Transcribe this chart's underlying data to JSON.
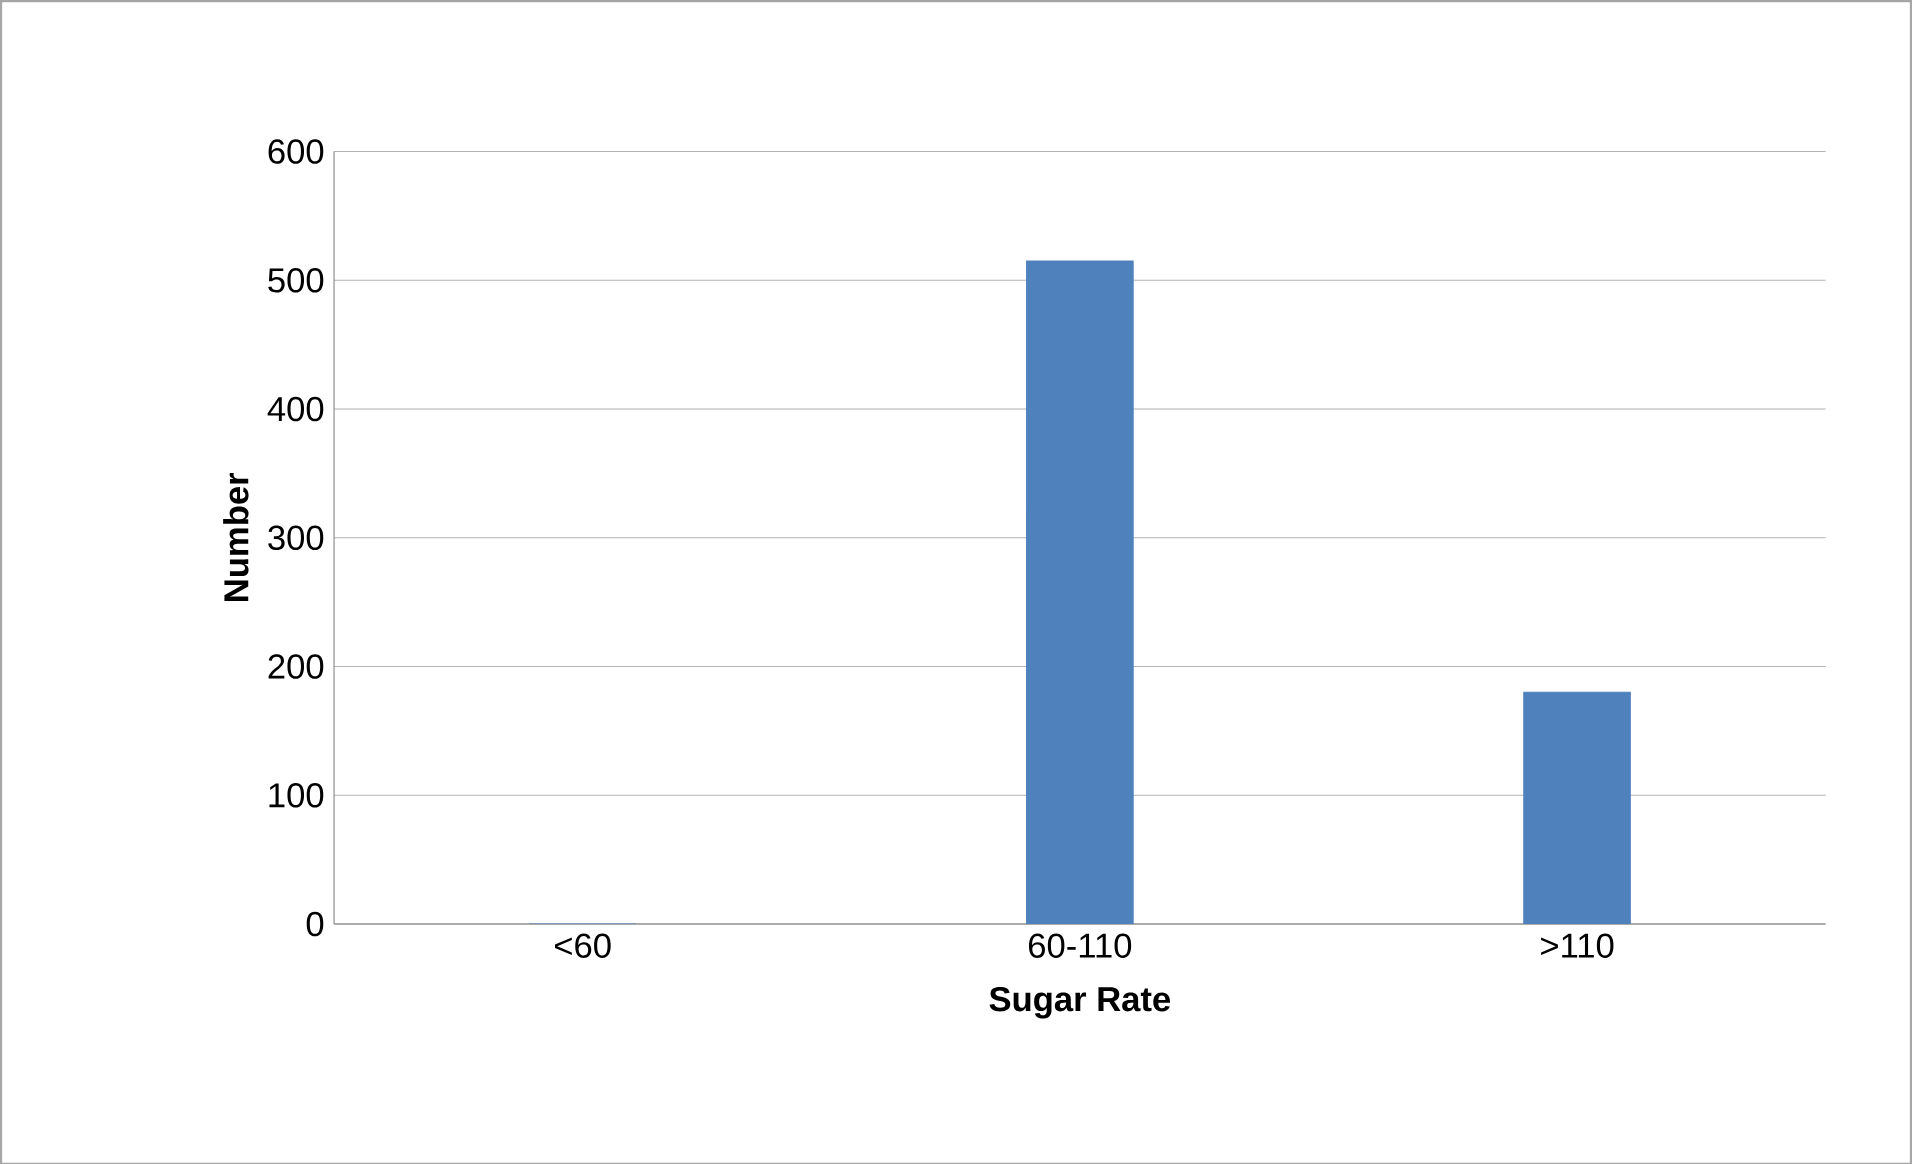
{
  "chart_data": {
    "type": "bar",
    "xlabel": "Sugar Rate",
    "ylabel": "Number",
    "categories": [
      "<60",
      "60-110",
      ">110"
    ],
    "values": [
      0,
      515,
      180
    ],
    "color": "#4f81bd",
    "ylim": [
      0,
      600
    ],
    "yticks": [
      0,
      100,
      200,
      300,
      400,
      500,
      600
    ],
    "grid": "y"
  }
}
